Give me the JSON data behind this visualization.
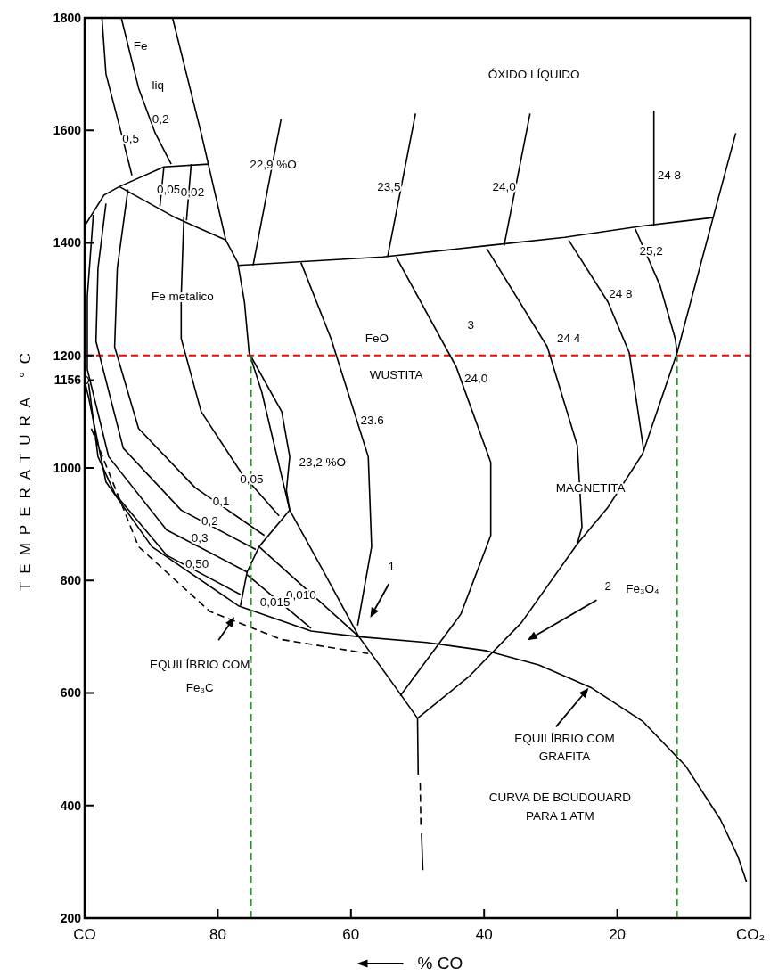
{
  "chart_data": {
    "type": "line",
    "xlabel": "% CO",
    "ylabel": "TEMPERATURA °C",
    "xlim": [
      100,
      0
    ],
    "ylim": [
      200,
      1800
    ],
    "xticks": [
      {
        "value": 100,
        "label": "CO"
      },
      80,
      60,
      40,
      20,
      {
        "value": 0,
        "label": "CO₂"
      }
    ],
    "yticks": [
      200,
      400,
      600,
      800,
      1000,
      {
        "value": 1156,
        "label": "1156"
      },
      1200,
      1400,
      1600,
      1800
    ],
    "ref_lines": [
      {
        "axis": "y",
        "value": 1200,
        "color": "#ff0000",
        "line_style": "dashed"
      }
    ],
    "series": [
      {
        "color": "#000000",
        "x": [
          86.8,
          82.5,
          78.8,
          77,
          76,
          75.3,
          73.4,
          69.2,
          64.3,
          58.8,
          53.9,
          50
        ],
        "values": [
          1800,
          1595,
          1405,
          1365,
          1295,
          1205,
          1135,
          925,
          820,
          700,
          620,
          555
        ]
      },
      {
        "color": "#000000",
        "x": [
          75.1,
          70.4,
          69.2,
          69.7,
          69.2
        ],
        "values": [
          1200,
          1100,
          1020,
          960,
          925
        ]
      },
      {
        "color": "#000000",
        "x": [
          67.5,
          63,
          57.4,
          56.9,
          59
        ],
        "values": [
          1365,
          1230,
          1020,
          860,
          720
        ]
      },
      {
        "color": "#000000",
        "x": [
          53.2,
          44.2,
          39,
          39,
          43.5,
          52.6
        ],
        "values": [
          1375,
          1180,
          1010,
          880,
          740,
          595
        ]
      },
      {
        "color": "#000000",
        "x": [
          39.6,
          30.5,
          26,
          25.3,
          26
        ],
        "values": [
          1390,
          1215,
          1040,
          895,
          865
        ]
      },
      {
        "color": "#000000",
        "x": [
          27.3,
          21.4,
          18.2,
          16
        ],
        "values": [
          1405,
          1295,
          1205,
          1030
        ]
      },
      {
        "color": "#000000",
        "x": [
          17.3,
          13.6,
          11.3,
          11
        ],
        "values": [
          1425,
          1325,
          1230,
          1205
        ]
      },
      {
        "color": "#000000",
        "x": [
          2.2,
          5.6,
          11,
          16.2,
          21.4,
          26,
          34.4,
          42.2,
          50
        ],
        "values": [
          1595,
          1445,
          1205,
          1025,
          930,
          865,
          725,
          630,
          555
        ]
      },
      {
        "color": "#000000",
        "x": [
          77,
          55.2,
          39.6,
          27.9,
          16.2,
          5.6
        ],
        "values": [
          1360,
          1375,
          1395,
          1410,
          1430,
          1445
        ]
      },
      {
        "color": "#000000",
        "x": [
          70.5,
          74.7
        ],
        "values": [
          1620,
          1360
        ]
      },
      {
        "color": "#000000",
        "x": [
          50.3,
          54.5
        ],
        "values": [
          1630,
          1375
        ]
      },
      {
        "color": "#000000",
        "x": [
          33.1,
          37
        ],
        "values": [
          1630,
          1395
        ]
      },
      {
        "color": "#000000",
        "x": [
          14.5,
          14.5
        ],
        "values": [
          1635,
          1430
        ]
      },
      {
        "color": "#000000",
        "x": [
          100,
          99.4,
          96.8,
          89.9,
          76.9,
          66,
          58.8,
          48.7,
          39.6,
          31.8,
          24,
          16.2,
          9.7,
          4.5,
          1.9,
          0.6
        ],
        "values": [
          1155,
          1125,
          975,
          860,
          755,
          710,
          700,
          690,
          675,
          650,
          610,
          550,
          470,
          375,
          310,
          265
        ]
      },
      {
        "color": "#000000",
        "line_style": "dashed",
        "x": [
          99,
          91.9,
          81.2,
          70.4,
          57.4
        ],
        "values": [
          1070,
          860,
          745,
          695,
          670
        ]
      },
      {
        "color": "#000000",
        "x": [
          85.1,
          85.5,
          85.5,
          82.5,
          76.4,
          70.8
        ],
        "values": [
          1445,
          1305,
          1230,
          1100,
          990,
          915
        ]
      },
      {
        "color": "#000000",
        "x": [
          93.5,
          95.1,
          95.5,
          91.9,
          83.4,
          73
        ],
        "values": [
          1495,
          1355,
          1215,
          1070,
          965,
          880
        ]
      },
      {
        "color": "#000000",
        "x": [
          96.8,
          98,
          98.3,
          94.2,
          85.5,
          74.3
        ],
        "values": [
          1470,
          1355,
          1225,
          1035,
          925,
          855
        ]
      },
      {
        "color": "#000000",
        "x": [
          98.7,
          99.6,
          99.6,
          96.4,
          87.7,
          75.6
        ],
        "values": [
          1450,
          1305,
          1175,
          1020,
          890,
          815
        ]
      },
      {
        "color": "#000000",
        "x": [
          99.4,
          98,
          95.5,
          87.7,
          76.6
        ],
        "values": [
          1150,
          1020,
          955,
          845,
          775
        ]
      },
      {
        "color": "#000000",
        "x": [
          69.2,
          73.8,
          75.6,
          76.6
        ],
        "values": [
          925,
          860,
          815,
          755
        ]
      },
      {
        "color": "#000000",
        "x": [
          73.8,
          58.8
        ],
        "values": [
          860,
          700
        ]
      },
      {
        "color": "#000000",
        "x": [
          75.6,
          66
        ],
        "values": [
          810,
          715
        ]
      },
      {
        "color": "#000000",
        "x": [
          100,
          97.1,
          94.8,
          88.1,
          81.4
        ],
        "values": [
          1430,
          1485,
          1500,
          1535,
          1540
        ]
      },
      {
        "color": "#000000",
        "x": [
          94.8,
          86.4,
          78.8
        ],
        "values": [
          1500,
          1445,
          1405
        ]
      },
      {
        "color": "#000000",
        "x": [
          88.1,
          88.7
        ],
        "values": [
          1535,
          1465
        ]
      },
      {
        "color": "#000000",
        "x": [
          84,
          84.7
        ],
        "values": [
          1540,
          1440
        ]
      },
      {
        "color": "#000000",
        "x": [
          97.4,
          96.8,
          94.5,
          92.9
        ],
        "values": [
          1800,
          1700,
          1595,
          1520
        ]
      },
      {
        "color": "#000000",
        "x": [
          94.5,
          91.9,
          89.4,
          87
        ],
        "values": [
          1800,
          1675,
          1595,
          1540
        ]
      },
      {
        "color": "#000000",
        "x": [
          50,
          49.9
        ],
        "values": [
          555,
          455
        ]
      },
      {
        "color": "#000000",
        "line_style": "dashed",
        "x": [
          49.6,
          49.5
        ],
        "values": [
          440,
          365
        ]
      },
      {
        "color": "#000000",
        "x": [
          49.4,
          49.2
        ],
        "values": [
          350,
          285
        ]
      },
      {
        "color": "#1f9a1f",
        "line_style": "dashed",
        "x": [
          75,
          75
        ],
        "values": [
          200,
          1200
        ]
      },
      {
        "color": "#1f9a1f",
        "line_style": "dashed",
        "x": [
          11,
          11
        ],
        "values": [
          200,
          1200
        ]
      },
      {
        "type": "scatter",
        "marker": "circle",
        "color": "#000000",
        "x": [
          100
        ],
        "values": [
          1156
        ]
      }
    ],
    "annotations": [
      "Fe",
      "liq",
      "ÓXIDO LÍQUIDO",
      "22,9 %O",
      "23,5",
      "24,0",
      "24 8",
      "0,5",
      "0,2",
      "0,05",
      "0,02",
      "Fe metalico",
      "25,2",
      "24 8",
      "24 4",
      "FeO",
      "3",
      "WUSTITA",
      "24,0",
      "23.6",
      "23,2 %O",
      "0,05",
      "0,1",
      "0,2",
      "0,3",
      "0,50",
      "0,010",
      "0,015",
      "MAGNETITA",
      "1",
      "2",
      "Fe₃O₄",
      "EQUILÍBRIO COM",
      "Fe₃C",
      "EQUILÍBRIO COM",
      "GRAFITA",
      "CURVA DE BOUDOUARD",
      "PARA 1 ATM"
    ]
  }
}
